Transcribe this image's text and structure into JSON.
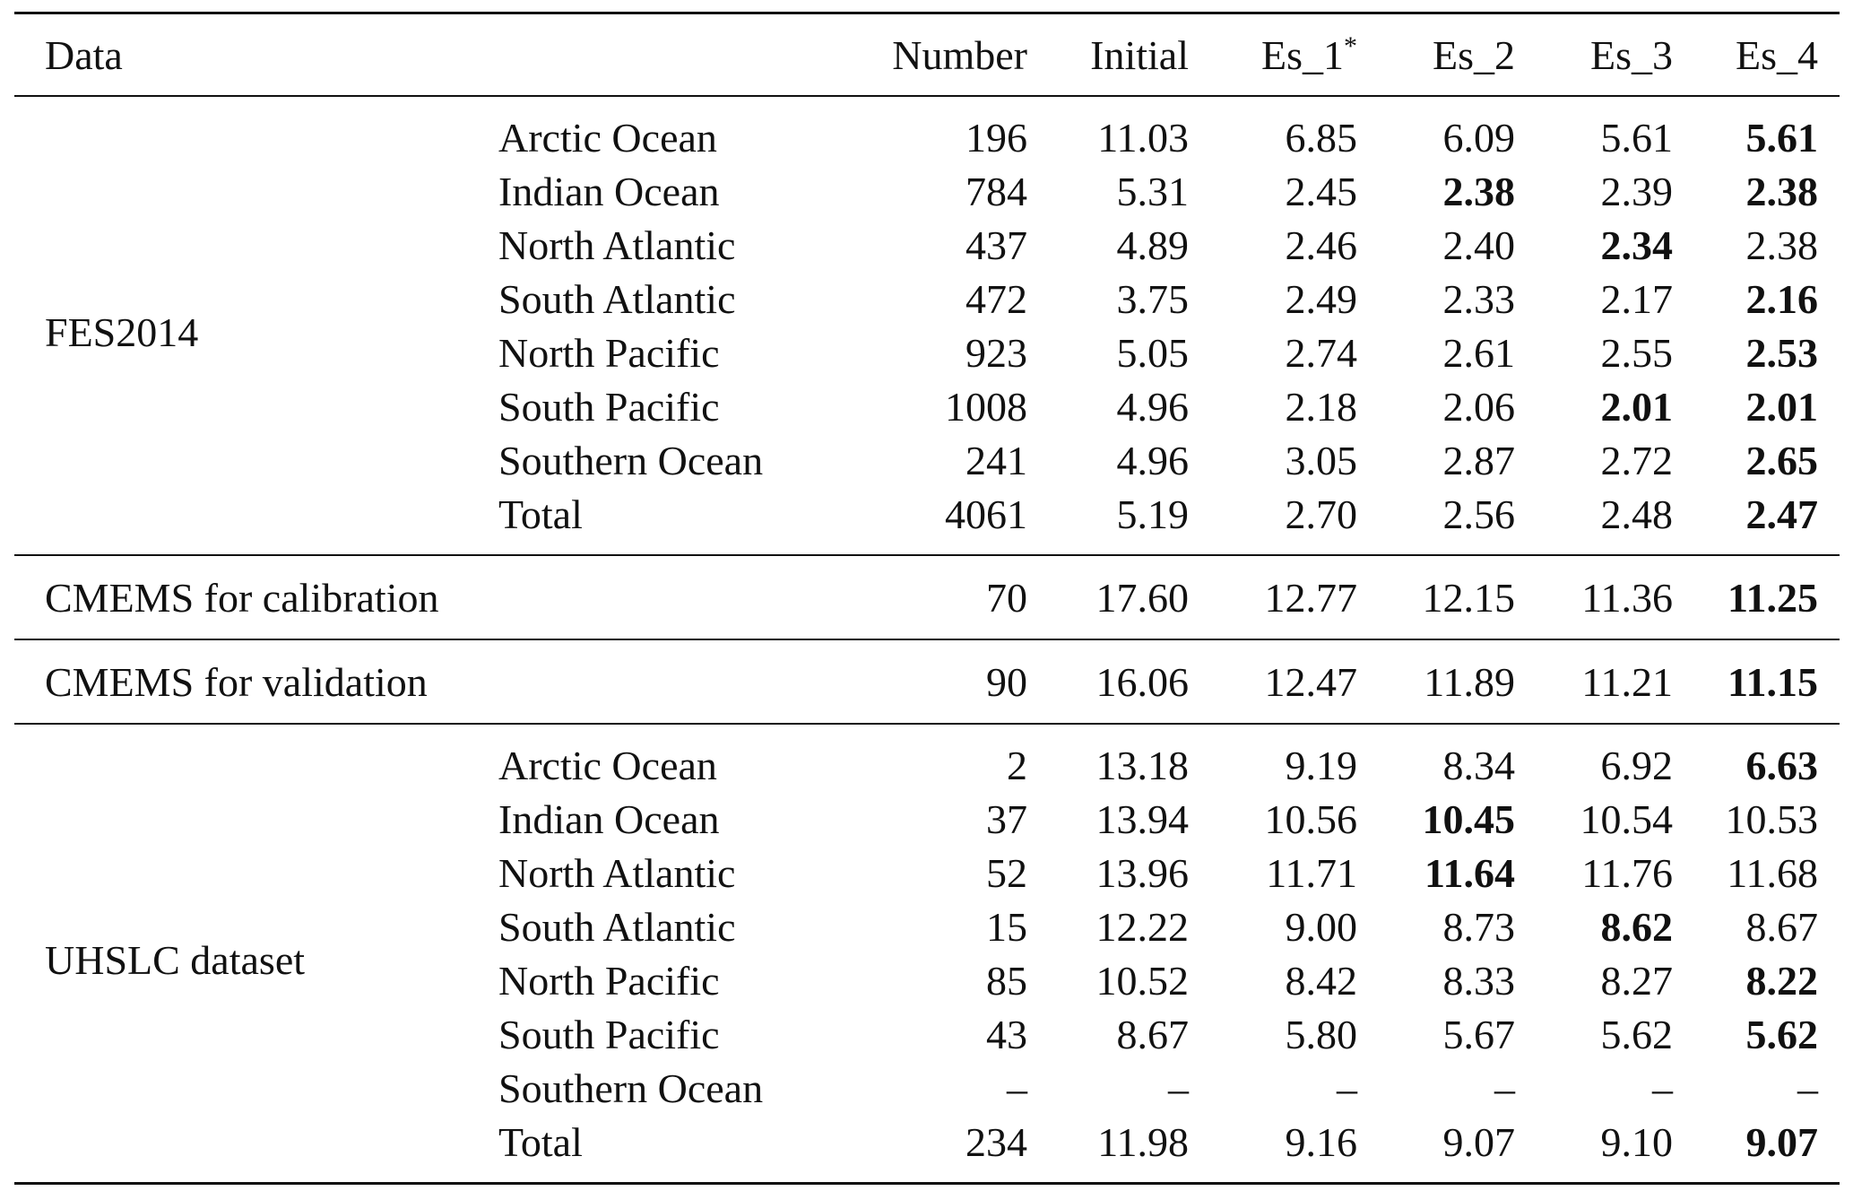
{
  "headers": {
    "data": "Data",
    "number": "Number",
    "initial": "Initial",
    "es1": "Es_1",
    "es1_mark": "*",
    "es2": "Es_2",
    "es3": "Es_3",
    "es4": "Es_4"
  },
  "groups": [
    {
      "label": "FES2014",
      "rows": [
        {
          "region": "Arctic Ocean",
          "number": "196",
          "initial": "11.03",
          "es1": "6.85",
          "es2": "6.09",
          "es3": "5.61",
          "es4": "5.61",
          "bold": [
            "es4"
          ]
        },
        {
          "region": "Indian Ocean",
          "number": "784",
          "initial": "5.31",
          "es1": "2.45",
          "es2": "2.38",
          "es3": "2.39",
          "es4": "2.38",
          "bold": [
            "es2",
            "es4"
          ]
        },
        {
          "region": "North Atlantic",
          "number": "437",
          "initial": "4.89",
          "es1": "2.46",
          "es2": "2.40",
          "es3": "2.34",
          "es4": "2.38",
          "bold": [
            "es3"
          ]
        },
        {
          "region": "South Atlantic",
          "number": "472",
          "initial": "3.75",
          "es1": "2.49",
          "es2": "2.33",
          "es3": "2.17",
          "es4": "2.16",
          "bold": [
            "es4"
          ]
        },
        {
          "region": "North Pacific",
          "number": "923",
          "initial": "5.05",
          "es1": "2.74",
          "es2": "2.61",
          "es3": "2.55",
          "es4": "2.53",
          "bold": [
            "es4"
          ]
        },
        {
          "region": "South Pacific",
          "number": "1008",
          "initial": "4.96",
          "es1": "2.18",
          "es2": "2.06",
          "es3": "2.01",
          "es4": "2.01",
          "bold": [
            "es3",
            "es4"
          ]
        },
        {
          "region": "Southern Ocean",
          "number": "241",
          "initial": "4.96",
          "es1": "3.05",
          "es2": "2.87",
          "es3": "2.72",
          "es4": "2.65",
          "bold": [
            "es4"
          ]
        },
        {
          "region": "Total",
          "number": "4061",
          "initial": "5.19",
          "es1": "2.70",
          "es2": "2.56",
          "es3": "2.48",
          "es4": "2.47",
          "bold": [
            "es4"
          ]
        }
      ]
    },
    {
      "label": "CMEMS for calibration",
      "rows": [
        {
          "region": "",
          "number": "70",
          "initial": "17.60",
          "es1": "12.77",
          "es2": "12.15",
          "es3": "11.36",
          "es4": "11.25",
          "bold": [
            "es4"
          ]
        }
      ]
    },
    {
      "label": "CMEMS for validation",
      "rows": [
        {
          "region": "",
          "number": "90",
          "initial": "16.06",
          "es1": "12.47",
          "es2": "11.89",
          "es3": "11.21",
          "es4": "11.15",
          "bold": [
            "es4"
          ]
        }
      ]
    },
    {
      "label": "UHSLC dataset",
      "rows": [
        {
          "region": "Arctic Ocean",
          "number": "2",
          "initial": "13.18",
          "es1": "9.19",
          "es2": "8.34",
          "es3": "6.92",
          "es4": "6.63",
          "bold": [
            "es4"
          ]
        },
        {
          "region": "Indian Ocean",
          "number": "37",
          "initial": "13.94",
          "es1": "10.56",
          "es2": "10.45",
          "es3": "10.54",
          "es4": "10.53",
          "bold": [
            "es2"
          ]
        },
        {
          "region": "North Atlantic",
          "number": "52",
          "initial": "13.96",
          "es1": "11.71",
          "es2": "11.64",
          "es3": "11.76",
          "es4": "11.68",
          "bold": [
            "es2"
          ]
        },
        {
          "region": "South Atlantic",
          "number": "15",
          "initial": "12.22",
          "es1": "9.00",
          "es2": "8.73",
          "es3": "8.62",
          "es4": "8.67",
          "bold": [
            "es3"
          ]
        },
        {
          "region": "North Pacific",
          "number": "85",
          "initial": "10.52",
          "es1": "8.42",
          "es2": "8.33",
          "es3": "8.27",
          "es4": "8.22",
          "bold": [
            "es4"
          ]
        },
        {
          "region": "South Pacific",
          "number": "43",
          "initial": "8.67",
          "es1": "5.80",
          "es2": "5.67",
          "es3": "5.62",
          "es4": "5.62",
          "bold": [
            "es4"
          ]
        },
        {
          "region": "Southern Ocean",
          "number": "–",
          "initial": "–",
          "es1": "–",
          "es2": "–",
          "es3": "–",
          "es4": "–",
          "bold": []
        },
        {
          "region": "Total",
          "number": "234",
          "initial": "11.98",
          "es1": "9.16",
          "es2": "9.07",
          "es3": "9.10",
          "es4": "9.07",
          "bold": [
            "es4"
          ]
        }
      ]
    }
  ]
}
